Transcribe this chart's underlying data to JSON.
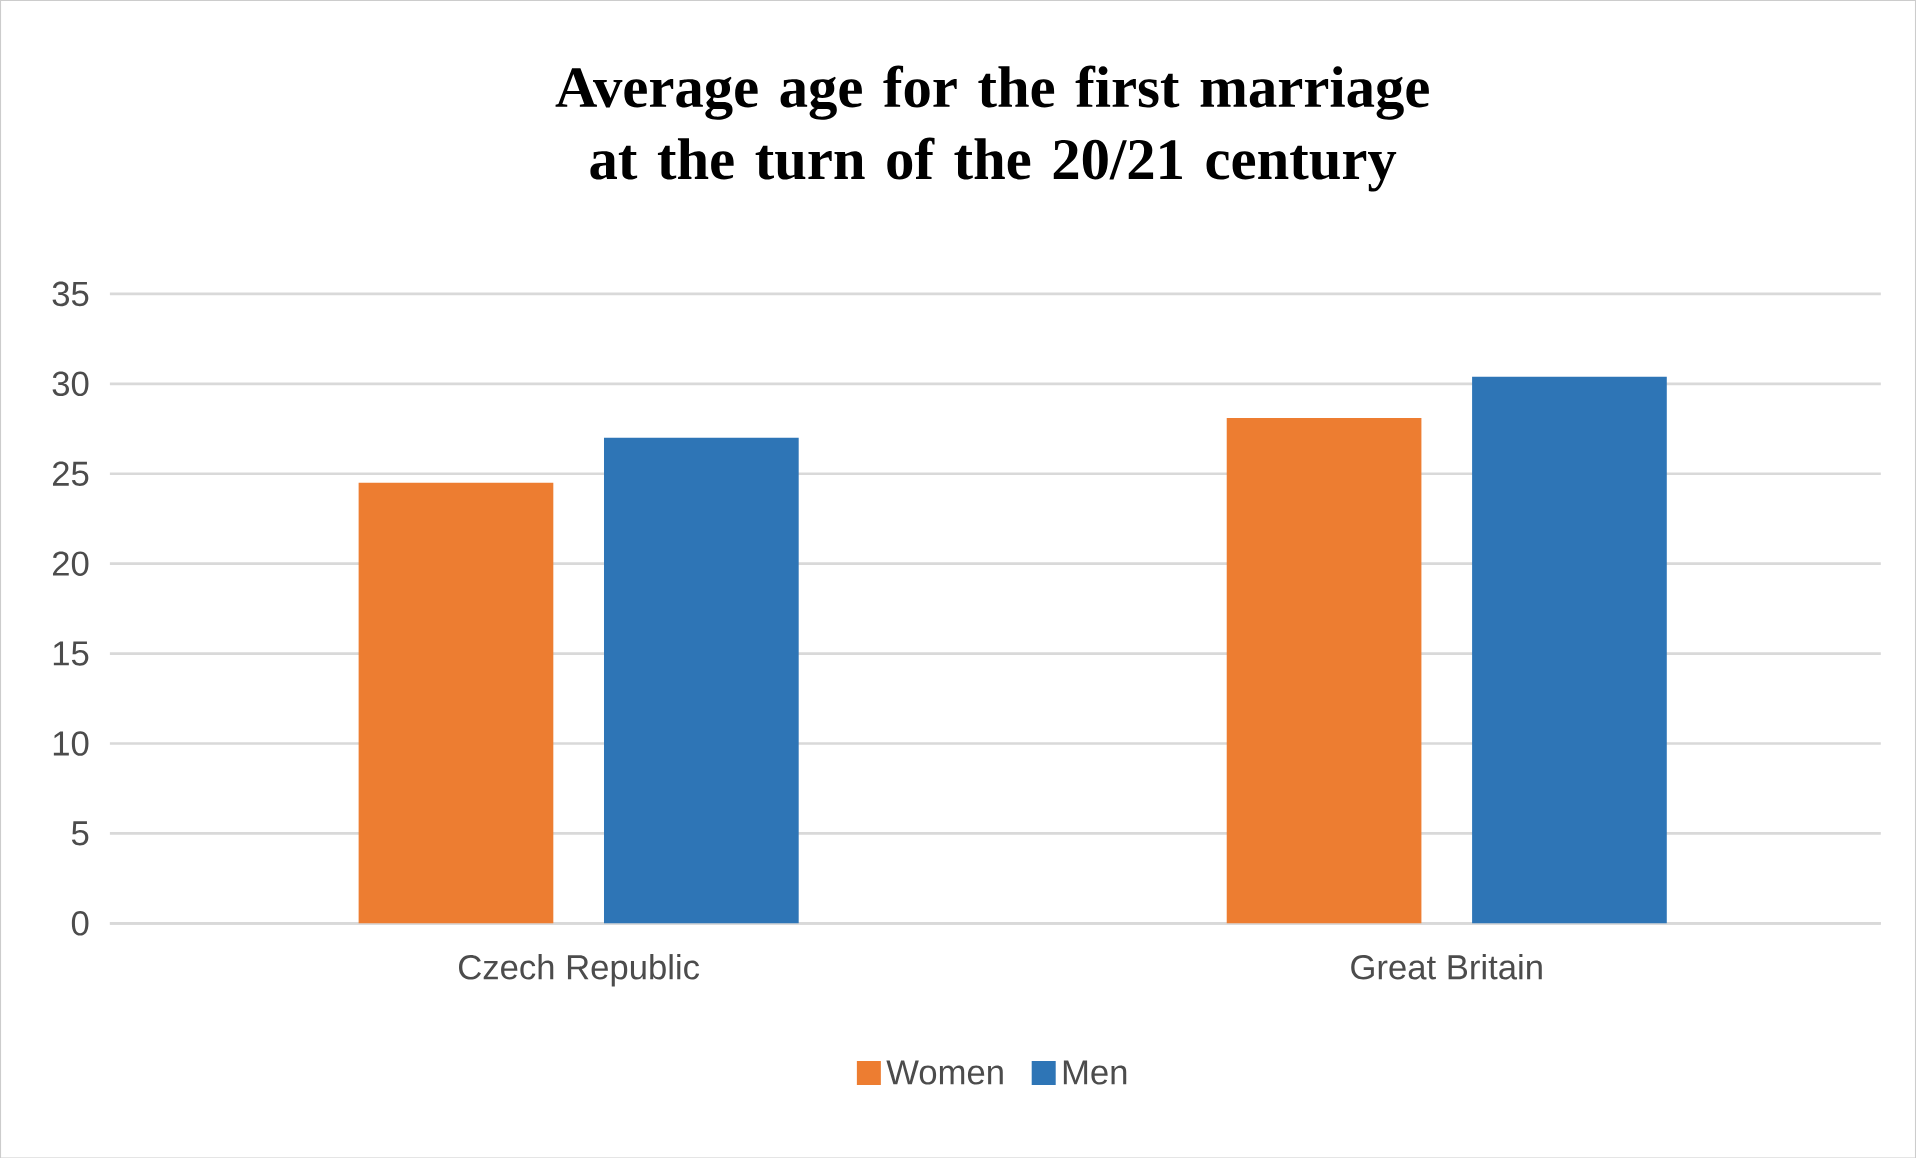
{
  "chart_data": {
    "type": "bar",
    "title": "Average age for the first marriage at the turn of the 20/21 century",
    "categories": [
      "Czech Republic",
      "Great Britain"
    ],
    "series": [
      {
        "name": "Women",
        "color": "#ed7d31",
        "values": [
          24.5,
          28.1
        ]
      },
      {
        "name": "Men",
        "color": "#2e75b6",
        "values": [
          27.0,
          30.4
        ]
      }
    ],
    "ylim": [
      0,
      35
    ],
    "yticks": [
      0,
      5,
      10,
      15,
      20,
      25,
      30,
      35
    ],
    "grid": "y",
    "legend": "bottom"
  }
}
